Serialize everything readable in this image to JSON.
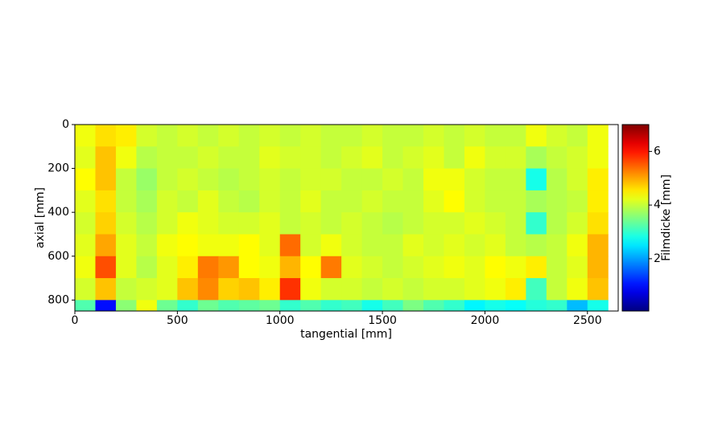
{
  "chart_data": {
    "type": "heatmap",
    "xlabel": "tangential [mm]",
    "ylabel": "axial [mm]",
    "colorbar_label": "Filmdicke [mm]",
    "colormap": "jet",
    "x": [
      50,
      150,
      250,
      350,
      450,
      550,
      650,
      750,
      850,
      950,
      1050,
      1150,
      1250,
      1350,
      1450,
      1550,
      1650,
      1750,
      1850,
      1950,
      2050,
      2150,
      2250,
      2350,
      2450,
      2550
    ],
    "y": [
      50,
      150,
      250,
      350,
      450,
      550,
      650,
      750,
      850
    ],
    "z": [
      [
        4.3,
        4.6,
        4.5,
        4.1,
        4.0,
        4.1,
        4.0,
        4.1,
        4.0,
        4.1,
        4.0,
        4.1,
        4.0,
        4.0,
        4.1,
        4.0,
        4.0,
        4.1,
        4.0,
        4.1,
        4.0,
        4.0,
        4.3,
        4.1,
        4.0,
        4.3
      ],
      [
        4.2,
        4.8,
        4.3,
        3.9,
        4.0,
        4.0,
        4.1,
        4.0,
        4.0,
        4.2,
        4.1,
        4.1,
        4.0,
        4.1,
        4.2,
        4.0,
        4.1,
        4.2,
        4.0,
        4.3,
        4.1,
        4.1,
        3.8,
        4.0,
        4.1,
        4.3
      ],
      [
        4.4,
        4.8,
        4.0,
        3.7,
        4.0,
        4.1,
        4.0,
        3.9,
        4.0,
        4.1,
        4.0,
        4.1,
        4.1,
        4.0,
        4.0,
        4.1,
        4.0,
        4.3,
        4.3,
        4.1,
        4.0,
        4.0,
        2.8,
        3.9,
        4.1,
        4.5
      ],
      [
        4.2,
        4.6,
        4.0,
        3.8,
        4.1,
        4.0,
        4.2,
        4.0,
        3.9,
        4.1,
        4.0,
        4.2,
        4.0,
        4.0,
        4.1,
        4.0,
        4.0,
        4.2,
        4.4,
        4.1,
        4.0,
        4.0,
        3.8,
        3.9,
        4.0,
        4.5
      ],
      [
        4.1,
        4.7,
        4.1,
        3.9,
        4.1,
        4.3,
        4.2,
        4.1,
        4.1,
        4.2,
        4.0,
        4.1,
        4.0,
        4.1,
        4.0,
        3.9,
        4.0,
        4.1,
        4.1,
        4.2,
        4.1,
        4.0,
        3.0,
        3.9,
        4.1,
        4.6
      ],
      [
        4.2,
        5.0,
        4.2,
        4.0,
        4.3,
        4.4,
        4.3,
        4.3,
        4.4,
        4.2,
        5.4,
        4.1,
        4.3,
        4.1,
        4.0,
        4.0,
        4.2,
        4.1,
        4.2,
        4.1,
        4.2,
        4.0,
        3.9,
        4.0,
        4.3,
        4.9
      ],
      [
        4.3,
        5.6,
        4.2,
        3.9,
        4.2,
        4.5,
        5.3,
        5.1,
        4.4,
        4.3,
        4.9,
        4.4,
        5.3,
        4.2,
        4.1,
        4.0,
        4.1,
        4.2,
        4.3,
        4.2,
        4.4,
        4.3,
        4.5,
        4.0,
        4.2,
        4.9
      ],
      [
        4.1,
        4.8,
        4.0,
        4.1,
        4.2,
        4.8,
        5.2,
        4.7,
        4.8,
        4.5,
        5.8,
        4.3,
        4.1,
        4.1,
        4.0,
        4.1,
        4.0,
        4.1,
        4.1,
        4.2,
        4.3,
        4.5,
        3.1,
        4.0,
        4.3,
        4.8
      ],
      [
        3.2,
        1.0,
        3.6,
        4.3,
        3.4,
        3.0,
        3.4,
        3.2,
        3.3,
        3.4,
        3.0,
        3.2,
        3.0,
        3.1,
        2.8,
        3.1,
        3.5,
        3.2,
        3.0,
        2.6,
        2.8,
        2.7,
        2.9,
        3.0,
        2.2,
        2.8
      ]
    ],
    "xlim": [
      0,
      2650
    ],
    "ylim": [
      850,
      0
    ],
    "xticks": [
      0,
      500,
      1000,
      1500,
      2000,
      2500
    ],
    "yticks": [
      0,
      200,
      400,
      600,
      800
    ],
    "clim": [
      0.05,
      7.0
    ],
    "cticks": [
      2,
      4,
      6
    ]
  }
}
